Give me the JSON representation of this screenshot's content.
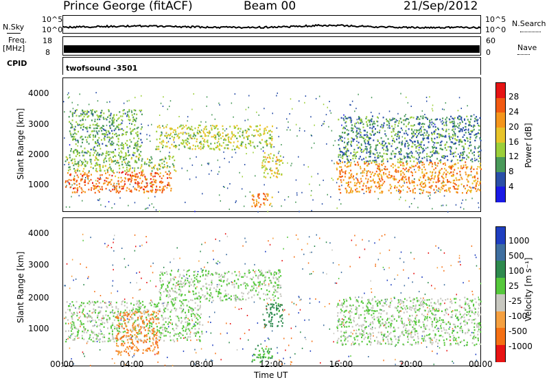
{
  "header": {
    "station": "Prince George (fitACF)",
    "beam": "Beam 00",
    "date": "21/Sep/2012"
  },
  "strips": {
    "nsky_label": "N.Sky",
    "nsearch_label": "N.Search",
    "freq_label_1": "Freq.",
    "freq_label_2": "[MHz]",
    "nave_label": "Nave",
    "cpid_label": "CPID",
    "cpid_value": "twofsound  -3501",
    "noise_ticks_left": [
      "10^5",
      "10^0"
    ],
    "noise_ticks_right": [
      "10^5",
      "10^0"
    ],
    "freq_ticks": [
      "18",
      "8"
    ],
    "nave_ticks": [
      "60",
      "0"
    ]
  },
  "power_scale": {
    "label": "Power [dB]",
    "ticks": [
      "28",
      "24",
      "20",
      "16",
      "12",
      "8",
      "4"
    ],
    "colors": [
      "#e61414",
      "#f25a12",
      "#f5961c",
      "#e8c42a",
      "#9ccf3a",
      "#4a9a5a",
      "#2a4fa8",
      "#1a1ae6"
    ]
  },
  "velocity_scale": {
    "label": "Velocity [m s⁻¹]",
    "ticks": [
      "1000",
      "500",
      "100",
      "25",
      "-25",
      "-100",
      "-500",
      "-1000"
    ],
    "colors": [
      "#1f3fc0",
      "#3f6fa0",
      "#2e8a4e",
      "#56c83c",
      "#c8c8c0",
      "#f5a040",
      "#f57014",
      "#e81414"
    ]
  },
  "axes": {
    "ylabel": "Slant Range [km]",
    "xlabel": "Time UT",
    "yticks": [
      "4000",
      "3000",
      "2000",
      "1000"
    ],
    "xticks": [
      "00:00",
      "04:00",
      "08:00",
      "12:00",
      "16:00",
      "20:00",
      "00:00"
    ]
  },
  "chart_data": [
    {
      "type": "heatmap",
      "title": "Power",
      "xlabel": "",
      "ylabel": "Slant Range [km]",
      "x_range_hours": [
        0,
        24
      ],
      "y_range_km": [
        180,
        4500
      ],
      "colorbar_label": "Power [dB]",
      "colorbar_range": [
        0,
        30
      ],
      "regions": [
        {
          "t0": 0.1,
          "t1": 6.2,
          "r0": 800,
          "r1": 1500,
          "level": 24
        },
        {
          "t0": 0.1,
          "t1": 6.5,
          "r0": 1500,
          "r1": 2000,
          "level": 12
        },
        {
          "t0": 0.3,
          "t1": 4.5,
          "r0": 2000,
          "r1": 3500,
          "level": 10
        },
        {
          "t0": 5.3,
          "t1": 12.0,
          "r0": 2200,
          "r1": 3000,
          "level": 14
        },
        {
          "t0": 11.4,
          "t1": 12.6,
          "r0": 1300,
          "r1": 2100,
          "level": 16
        },
        {
          "t0": 10.8,
          "t1": 12.0,
          "r0": 300,
          "r1": 800,
          "level": 22
        },
        {
          "t0": 15.7,
          "t1": 24.0,
          "r0": 800,
          "r1": 1800,
          "level": 22
        },
        {
          "t0": 15.8,
          "t1": 24.0,
          "r0": 1800,
          "r1": 3300,
          "level": 8
        }
      ]
    },
    {
      "type": "heatmap",
      "title": "Velocity",
      "xlabel": "Time UT",
      "ylabel": "Slant Range [km]",
      "x_range_hours": [
        0,
        24
      ],
      "y_range_km": [
        180,
        4500
      ],
      "colorbar_label": "Velocity [m s⁻¹]",
      "colorbar_range": [
        -1000,
        1000
      ],
      "regions": [
        {
          "t0": 0.1,
          "t1": 8.0,
          "r0": 900,
          "r1": 2100,
          "level": 0
        },
        {
          "t0": 3.0,
          "t1": 5.5,
          "r0": 500,
          "r1": 1800,
          "level": -300
        },
        {
          "t0": 5.5,
          "t1": 12.5,
          "r0": 2100,
          "r1": 3000,
          "level": 0
        },
        {
          "t0": 11.5,
          "t1": 12.6,
          "r0": 1300,
          "r1": 2100,
          "level": 80
        },
        {
          "t0": 10.8,
          "t1": 12.0,
          "r0": 300,
          "r1": 800,
          "level": 60
        },
        {
          "t0": 15.7,
          "t1": 24.0,
          "r0": 800,
          "r1": 2200,
          "level": 0
        }
      ]
    }
  ]
}
